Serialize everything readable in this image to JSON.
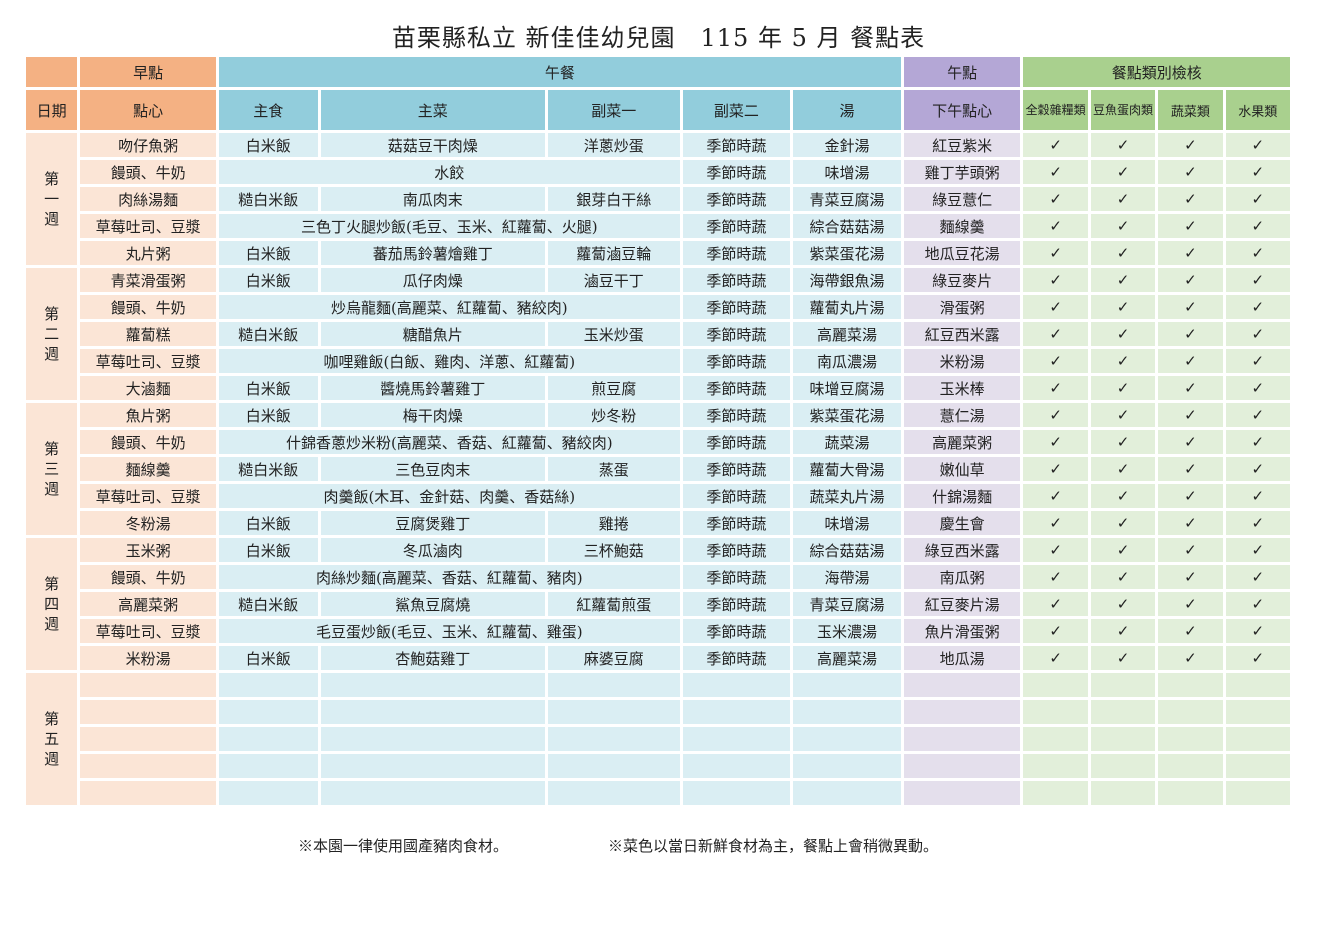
{
  "title": "苗栗縣私立 新佳佳幼兒園　115 年 5 月 餐點表",
  "header": {
    "breakfast": "早點",
    "lunch": "午餐",
    "snack": "午點",
    "check": "餐點類別檢核",
    "date": "日期",
    "dessert": "點心",
    "staple": "主食",
    "main": "主菜",
    "side1": "副菜一",
    "side2": "副菜二",
    "soup": "湯",
    "afternoon": "下午點心",
    "grain": "全穀雜糧類",
    "protein": "豆魚蛋肉類",
    "veg": "蔬菜類",
    "fruit": "水果類"
  },
  "tick": "✓",
  "weeks": [
    {
      "label": "第一週",
      "rows": [
        {
          "breakfast": "吻仔魚粥",
          "staple": "白米飯",
          "main": "菇菇豆干肉燥",
          "side1": "洋蔥炒蛋",
          "side2": "季節時蔬",
          "soup": "金針湯",
          "snack": "紅豆紫米"
        },
        {
          "breakfast": "饅頭、牛奶",
          "combo": "水餃",
          "side2": "季節時蔬",
          "soup": "味增湯",
          "snack": "雞丁芋頭粥"
        },
        {
          "breakfast": "肉絲湯麵",
          "staple": "糙白米飯",
          "main": "南瓜肉末",
          "side1": "銀芽白干絲",
          "side2": "季節時蔬",
          "soup": "青菜豆腐湯",
          "snack": "綠豆薏仁"
        },
        {
          "breakfast": "草莓吐司、豆漿",
          "combo": "三色丁火腿炒飯(毛豆、玉米、紅蘿蔔、火腿)",
          "side2": "季節時蔬",
          "soup": "綜合菇菇湯",
          "snack": "麵線羹"
        },
        {
          "breakfast": "丸片粥",
          "staple": "白米飯",
          "main": "蕃茄馬鈴薯燴雞丁",
          "side1": "蘿蔔滷豆輪",
          "side2": "季節時蔬",
          "soup": "紫菜蛋花湯",
          "snack": "地瓜豆花湯"
        }
      ]
    },
    {
      "label": "第二週",
      "rows": [
        {
          "breakfast": "青菜滑蛋粥",
          "staple": "白米飯",
          "main": "瓜仔肉燥",
          "side1": "滷豆干丁",
          "side2": "季節時蔬",
          "soup": "海帶銀魚湯",
          "snack": "綠豆麥片"
        },
        {
          "breakfast": "饅頭、牛奶",
          "combo": "炒烏龍麵(高麗菜、紅蘿蔔、豬絞肉)",
          "side2": "季節時蔬",
          "soup": "蘿蔔丸片湯",
          "snack": "滑蛋粥"
        },
        {
          "breakfast": "蘿蔔糕",
          "staple": "糙白米飯",
          "main": "糖醋魚片",
          "side1": "玉米炒蛋",
          "side2": "季節時蔬",
          "soup": "高麗菜湯",
          "snack": "紅豆西米露"
        },
        {
          "breakfast": "草莓吐司、豆漿",
          "combo": "咖哩雞飯(白飯、雞肉、洋蔥、紅蘿蔔)",
          "side2": "季節時蔬",
          "soup": "南瓜濃湯",
          "snack": "米粉湯"
        },
        {
          "breakfast": "大滷麵",
          "staple": "白米飯",
          "main": "醬燒馬鈴薯雞丁",
          "side1": "煎豆腐",
          "side2": "季節時蔬",
          "soup": "味增豆腐湯",
          "snack": "玉米棒"
        }
      ]
    },
    {
      "label": "第三週",
      "rows": [
        {
          "breakfast": "魚片粥",
          "staple": "白米飯",
          "main": "梅干肉燥",
          "side1": "炒冬粉",
          "side2": "季節時蔬",
          "soup": "紫菜蛋花湯",
          "snack": "薏仁湯"
        },
        {
          "breakfast": "饅頭、牛奶",
          "combo": "什錦香蔥炒米粉(高麗菜、香菇、紅蘿蔔、豬絞肉)",
          "side2": "季節時蔬",
          "soup": "蔬菜湯",
          "snack": "高麗菜粥"
        },
        {
          "breakfast": "麵線羹",
          "staple": "糙白米飯",
          "main": "三色豆肉末",
          "side1": "蒸蛋",
          "side2": "季節時蔬",
          "soup": "蘿蔔大骨湯",
          "snack": "嫩仙草"
        },
        {
          "breakfast": "草莓吐司、豆漿",
          "combo": "肉羹飯(木耳、金針菇、肉羹、香菇絲)",
          "side2": "季節時蔬",
          "soup": "蔬菜丸片湯",
          "snack": "什錦湯麵"
        },
        {
          "breakfast": "冬粉湯",
          "staple": "白米飯",
          "main": "豆腐煲雞丁",
          "side1": "雞捲",
          "side2": "季節時蔬",
          "soup": "味增湯",
          "snack": "慶生會"
        }
      ]
    },
    {
      "label": "第四週",
      "rows": [
        {
          "breakfast": "玉米粥",
          "staple": "白米飯",
          "main": "冬瓜滷肉",
          "side1": "三杯鮑菇",
          "side2": "季節時蔬",
          "soup": "綜合菇菇湯",
          "snack": "綠豆西米露"
        },
        {
          "breakfast": "饅頭、牛奶",
          "combo": "肉絲炒麵(高麗菜、香菇、紅蘿蔔、豬肉)",
          "side2": "季節時蔬",
          "soup": "海帶湯",
          "snack": "南瓜粥"
        },
        {
          "breakfast": "高麗菜粥",
          "staple": "糙白米飯",
          "main": "鯊魚豆腐燒",
          "side1": "紅蘿蔔煎蛋",
          "side2": "季節時蔬",
          "soup": "青菜豆腐湯",
          "snack": "紅豆麥片湯"
        },
        {
          "breakfast": "草莓吐司、豆漿",
          "combo": "毛豆蛋炒飯(毛豆、玉米、紅蘿蔔、雞蛋)",
          "side2": "季節時蔬",
          "soup": "玉米濃湯",
          "snack": "魚片滑蛋粥"
        },
        {
          "breakfast": "米粉湯",
          "staple": "白米飯",
          "main": "杏鮑菇雞丁",
          "side1": "麻婆豆腐",
          "side2": "季節時蔬",
          "soup": "高麗菜湯",
          "snack": "地瓜湯"
        }
      ]
    },
    {
      "label": "第五週",
      "blank": true,
      "rows": [
        {},
        {},
        {},
        {},
        {}
      ]
    }
  ],
  "notes": {
    "pork": "※本園一律使用國產豬肉食材。",
    "fresh": "※菜色以當日新鮮食材為主，餐點上會稍微異動。"
  }
}
